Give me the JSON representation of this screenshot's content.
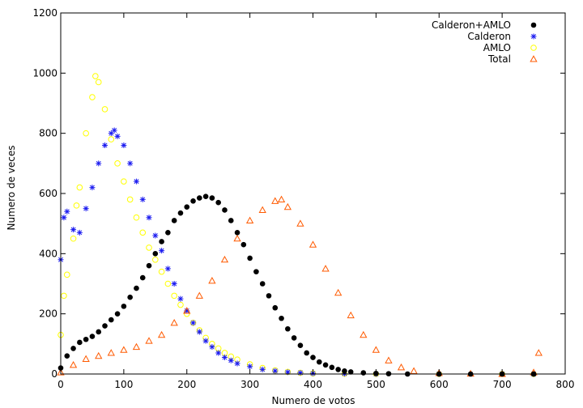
{
  "chart_data": {
    "type": "scatter",
    "title": "",
    "xlabel": "Numero de votos",
    "ylabel": "Numero de veces",
    "xlim": [
      0,
      800
    ],
    "ylim": [
      0,
      1200
    ],
    "x_ticks": [
      "0",
      "100",
      "200",
      "300",
      "400",
      "500",
      "600",
      "700",
      "800"
    ],
    "y_ticks": [
      "0",
      "200",
      "400",
      "600",
      "800",
      "1000",
      "1200"
    ],
    "grid": false,
    "legend_position": "top-right",
    "series": [
      {
        "name": "Calderon+AMLO",
        "marker": "filled-circle",
        "color": "#000000",
        "x": [
          0,
          10,
          20,
          30,
          40,
          50,
          60,
          70,
          80,
          90,
          100,
          110,
          120,
          130,
          140,
          150,
          160,
          170,
          180,
          190,
          200,
          210,
          220,
          230,
          240,
          250,
          260,
          270,
          280,
          290,
          300,
          310,
          320,
          330,
          340,
          350,
          360,
          370,
          380,
          390,
          400,
          410,
          420,
          430,
          440,
          450,
          460,
          480,
          500,
          520,
          550,
          600,
          650,
          700,
          750
        ],
        "y": [
          20,
          60,
          85,
          105,
          115,
          125,
          140,
          160,
          180,
          200,
          225,
          255,
          285,
          320,
          360,
          400,
          440,
          470,
          510,
          535,
          555,
          575,
          585,
          590,
          585,
          570,
          545,
          510,
          470,
          430,
          385,
          340,
          300,
          260,
          220,
          185,
          150,
          120,
          95,
          70,
          55,
          40,
          30,
          22,
          15,
          10,
          7,
          4,
          2,
          1,
          0,
          0,
          0,
          0,
          0
        ]
      },
      {
        "name": "Calderon",
        "marker": "asterisk",
        "color": "#1c1cf0",
        "x": [
          0,
          5,
          10,
          20,
          30,
          40,
          50,
          60,
          70,
          80,
          85,
          90,
          100,
          110,
          120,
          130,
          140,
          150,
          160,
          170,
          180,
          190,
          200,
          210,
          220,
          230,
          240,
          250,
          260,
          270,
          280,
          300,
          320,
          340,
          360,
          380,
          400,
          450,
          500,
          600,
          700,
          750
        ],
        "y": [
          380,
          520,
          540,
          480,
          470,
          550,
          620,
          700,
          760,
          800,
          810,
          790,
          760,
          700,
          640,
          580,
          520,
          460,
          410,
          350,
          300,
          250,
          210,
          170,
          140,
          110,
          90,
          70,
          55,
          45,
          35,
          25,
          15,
          10,
          6,
          4,
          2,
          1,
          0,
          0,
          0,
          0
        ]
      },
      {
        "name": "AMLO",
        "marker": "open-circle",
        "color": "#ffff00",
        "x": [
          0,
          5,
          10,
          20,
          25,
          30,
          40,
          50,
          55,
          60,
          70,
          80,
          90,
          100,
          110,
          120,
          130,
          140,
          150,
          160,
          170,
          180,
          190,
          200,
          210,
          220,
          230,
          240,
          250,
          260,
          270,
          280,
          300,
          320,
          340,
          360,
          380,
          400,
          450,
          500,
          600,
          700,
          750
        ],
        "y": [
          130,
          260,
          330,
          450,
          560,
          620,
          800,
          920,
          990,
          970,
          880,
          780,
          700,
          640,
          580,
          520,
          470,
          420,
          380,
          340,
          300,
          260,
          230,
          200,
          170,
          145,
          120,
          100,
          85,
          70,
          58,
          48,
          32,
          20,
          12,
          7,
          4,
          2,
          1,
          0,
          0,
          0,
          0
        ]
      },
      {
        "name": "Total",
        "marker": "open-triangle",
        "color": "#ff5a00",
        "x": [
          0,
          20,
          40,
          60,
          80,
          100,
          120,
          140,
          160,
          180,
          200,
          220,
          240,
          260,
          280,
          300,
          320,
          340,
          350,
          360,
          380,
          400,
          420,
          440,
          460,
          480,
          500,
          520,
          540,
          560,
          600,
          650,
          700,
          750,
          758
        ],
        "y": [
          5,
          30,
          50,
          60,
          70,
          80,
          90,
          110,
          130,
          170,
          210,
          260,
          310,
          380,
          450,
          510,
          545,
          575,
          580,
          555,
          500,
          430,
          350,
          270,
          195,
          130,
          80,
          45,
          22,
          10,
          3,
          1,
          0,
          5,
          70
        ]
      }
    ]
  }
}
